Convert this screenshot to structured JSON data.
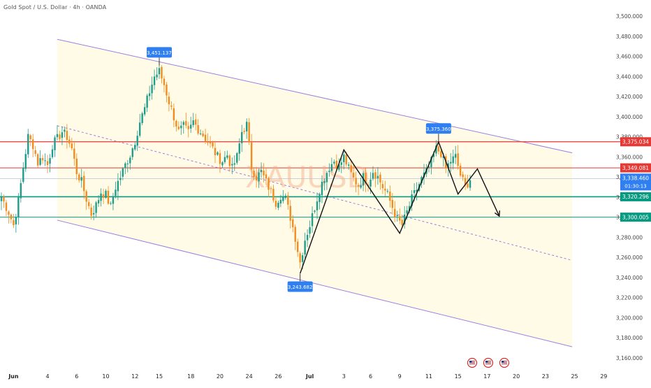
{
  "header": {
    "symbol": "Gold Spot / U.S. Dollar · 4h · OANDA",
    "watermark": "XAUUSD"
  },
  "colors": {
    "bull": "#1f9d8b",
    "bear": "#f28c1e",
    "channel_fill": "#fffbe6",
    "channel_line": "#9b7fe0",
    "resistance": "#e53935",
    "support": "#089981",
    "price_tag": "#2f7ff0",
    "path": "#111111"
  },
  "chart_data": {
    "type": "candlestick",
    "ylim": [
      3155,
      3505
    ],
    "y_ticks": [
      "3,160.000",
      "3,180.000",
      "3,200.000",
      "3,220.000",
      "3,240.000",
      "3,260.000",
      "3,280.000",
      "3,300.000",
      "3,320.000",
      "3,340.000",
      "3,360.000",
      "3,380.000",
      "3,400.000",
      "3,420.000",
      "3,440.000",
      "3,460.000",
      "3,480.000",
      "3,500.000"
    ],
    "x_labels": [
      {
        "label": "Jun",
        "bar": 5,
        "bold": true
      },
      {
        "label": "4",
        "bar": 19
      },
      {
        "label": "6",
        "bar": 31
      },
      {
        "label": "10",
        "bar": 43
      },
      {
        "label": "12",
        "bar": 55
      },
      {
        "label": "15",
        "bar": 65
      },
      {
        "label": "18",
        "bar": 78
      },
      {
        "label": "20",
        "bar": 90
      },
      {
        "label": "24",
        "bar": 102
      },
      {
        "label": "26",
        "bar": 114
      },
      {
        "label": "Jul",
        "bar": 127,
        "bold": true
      },
      {
        "label": "3",
        "bar": 141
      },
      {
        "label": "6",
        "bar": 152
      },
      {
        "label": "9",
        "bar": 164
      },
      {
        "label": "11",
        "bar": 176
      },
      {
        "label": "15",
        "bar": 188
      },
      {
        "label": "17",
        "bar": 200
      },
      {
        "label": "20",
        "bar": 212
      },
      {
        "label": "23",
        "bar": 224
      },
      {
        "label": "25",
        "bar": 236
      },
      {
        "label": "29",
        "bar": 248
      }
    ],
    "price_levels": [
      {
        "label": "3,375.034",
        "value": 3375.034,
        "kind": "resistance-strong"
      },
      {
        "label": "3,349.081",
        "value": 3349.081,
        "kind": "resistance"
      },
      {
        "label": "3,338.460",
        "sub": "01:30:13",
        "value": 3338.46,
        "kind": "current"
      },
      {
        "label": "3,320.296",
        "value": 3320.296,
        "kind": "support-strong"
      },
      {
        "label": "3,300.005",
        "value": 3300.005,
        "kind": "support"
      }
    ],
    "callouts": [
      {
        "label": "3,451.137",
        "bar": 65,
        "value": 3451.137,
        "dir": "up"
      },
      {
        "label": "3,375.360",
        "bar": 180,
        "value": 3375.36,
        "dir": "up"
      },
      {
        "label": "3,243.682",
        "bar": 123,
        "value": 3243.682,
        "dir": "down"
      }
    ],
    "channel": {
      "upper": [
        [
          23,
          3477
        ],
        [
          235,
          3364
        ]
      ],
      "lower": [
        [
          23,
          3297
        ],
        [
          235,
          3171
        ]
      ],
      "mid": [
        [
          23,
          3391
        ],
        [
          235,
          3257
        ]
      ]
    },
    "projection_path": [
      [
        123,
        3244
      ],
      [
        141,
        3367
      ],
      [
        164,
        3284
      ],
      [
        180,
        3375
      ],
      [
        188,
        3323
      ],
      [
        196,
        3348
      ],
      [
        205,
        3301
      ]
    ],
    "anchors": [
      {
        "bar": 0,
        "value": 3320
      },
      {
        "bar": 3,
        "value": 3305
      },
      {
        "bar": 5,
        "value": 3292
      },
      {
        "bar": 7,
        "value": 3316
      },
      {
        "bar": 9,
        "value": 3350
      },
      {
        "bar": 11,
        "value": 3380
      },
      {
        "bar": 13,
        "value": 3372
      },
      {
        "bar": 15,
        "value": 3354
      },
      {
        "bar": 17,
        "value": 3360
      },
      {
        "bar": 19,
        "value": 3352
      },
      {
        "bar": 21,
        "value": 3372
      },
      {
        "bar": 23,
        "value": 3378
      },
      {
        "bar": 25,
        "value": 3385
      },
      {
        "bar": 27,
        "value": 3380
      },
      {
        "bar": 29,
        "value": 3368
      },
      {
        "bar": 31,
        "value": 3345
      },
      {
        "bar": 33,
        "value": 3335
      },
      {
        "bar": 35,
        "value": 3318
      },
      {
        "bar": 37,
        "value": 3303
      },
      {
        "bar": 39,
        "value": 3312
      },
      {
        "bar": 41,
        "value": 3325
      },
      {
        "bar": 43,
        "value": 3322
      },
      {
        "bar": 45,
        "value": 3310
      },
      {
        "bar": 47,
        "value": 3330
      },
      {
        "bar": 49,
        "value": 3340
      },
      {
        "bar": 51,
        "value": 3352
      },
      {
        "bar": 53,
        "value": 3362
      },
      {
        "bar": 55,
        "value": 3376
      },
      {
        "bar": 57,
        "value": 3395
      },
      {
        "bar": 59,
        "value": 3408
      },
      {
        "bar": 61,
        "value": 3425
      },
      {
        "bar": 63,
        "value": 3440
      },
      {
        "bar": 65,
        "value": 3445
      },
      {
        "bar": 67,
        "value": 3432
      },
      {
        "bar": 69,
        "value": 3415
      },
      {
        "bar": 71,
        "value": 3400
      },
      {
        "bar": 73,
        "value": 3385
      },
      {
        "bar": 75,
        "value": 3390
      },
      {
        "bar": 77,
        "value": 3384
      },
      {
        "bar": 79,
        "value": 3395
      },
      {
        "bar": 81,
        "value": 3388
      },
      {
        "bar": 83,
        "value": 3382
      },
      {
        "bar": 85,
        "value": 3375
      },
      {
        "bar": 87,
        "value": 3368
      },
      {
        "bar": 89,
        "value": 3360
      },
      {
        "bar": 91,
        "value": 3356
      },
      {
        "bar": 93,
        "value": 3362
      },
      {
        "bar": 95,
        "value": 3348
      },
      {
        "bar": 97,
        "value": 3360
      },
      {
        "bar": 99,
        "value": 3385
      },
      {
        "bar": 101,
        "value": 3392
      },
      {
        "bar": 103,
        "value": 3350
      },
      {
        "bar": 105,
        "value": 3340
      },
      {
        "bar": 107,
        "value": 3345
      },
      {
        "bar": 109,
        "value": 3335
      },
      {
        "bar": 111,
        "value": 3325
      },
      {
        "bar": 113,
        "value": 3315
      },
      {
        "bar": 115,
        "value": 3322
      },
      {
        "bar": 117,
        "value": 3318
      },
      {
        "bar": 119,
        "value": 3300
      },
      {
        "bar": 121,
        "value": 3280
      },
      {
        "bar": 123,
        "value": 3255
      },
      {
        "bar": 125,
        "value": 3278
      },
      {
        "bar": 127,
        "value": 3292
      },
      {
        "bar": 129,
        "value": 3310
      },
      {
        "bar": 131,
        "value": 3328
      },
      {
        "bar": 133,
        "value": 3340
      },
      {
        "bar": 135,
        "value": 3350
      },
      {
        "bar": 137,
        "value": 3356
      },
      {
        "bar": 139,
        "value": 3350
      },
      {
        "bar": 141,
        "value": 3360
      },
      {
        "bar": 143,
        "value": 3348
      },
      {
        "bar": 145,
        "value": 3338
      },
      {
        "bar": 147,
        "value": 3332
      },
      {
        "bar": 149,
        "value": 3340
      },
      {
        "bar": 151,
        "value": 3335
      },
      {
        "bar": 153,
        "value": 3346
      },
      {
        "bar": 155,
        "value": 3340
      },
      {
        "bar": 157,
        "value": 3330
      },
      {
        "bar": 159,
        "value": 3322
      },
      {
        "bar": 161,
        "value": 3310
      },
      {
        "bar": 163,
        "value": 3298
      },
      {
        "bar": 165,
        "value": 3292
      },
      {
        "bar": 167,
        "value": 3305
      },
      {
        "bar": 169,
        "value": 3318
      },
      {
        "bar": 171,
        "value": 3328
      },
      {
        "bar": 173,
        "value": 3338
      },
      {
        "bar": 175,
        "value": 3345
      },
      {
        "bar": 177,
        "value": 3355
      },
      {
        "bar": 179,
        "value": 3368
      },
      {
        "bar": 181,
        "value": 3364
      },
      {
        "bar": 183,
        "value": 3348
      },
      {
        "bar": 185,
        "value": 3356
      },
      {
        "bar": 187,
        "value": 3360
      },
      {
        "bar": 189,
        "value": 3342
      },
      {
        "bar": 191,
        "value": 3330
      },
      {
        "bar": 193,
        "value": 3338
      }
    ]
  },
  "events": {
    "count": 3,
    "icon": "us-flag-icon"
  }
}
